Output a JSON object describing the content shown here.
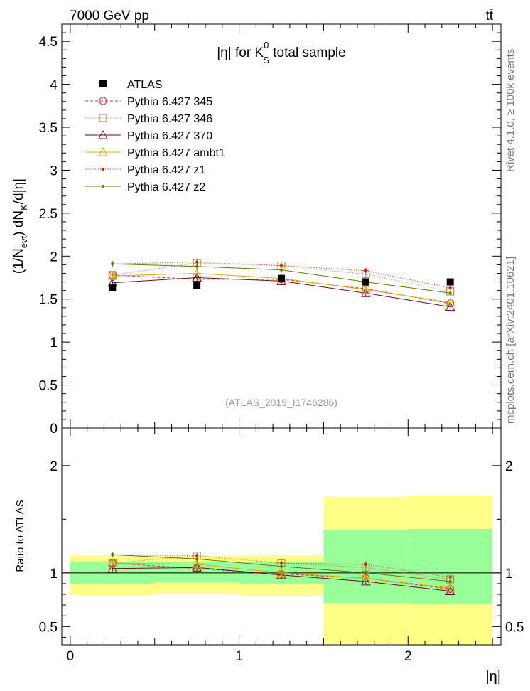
{
  "header": {
    "energy_label": "7000 GeV pp",
    "process_label": "tt̄"
  },
  "side_labels": {
    "rivet": "Rivet 4.1.0, ≥ 100k events",
    "mcplots": "mcplots.cern.ch [arXiv:2401.10621]"
  },
  "chart_data": [
    {
      "type": "line",
      "title": "|η| for K⁰S total sample",
      "title_parts": {
        "pre": "|η| for K",
        "sup": "0",
        "sub": "S",
        "post": " total sample"
      },
      "watermark": "(ATLAS_2019_I1746286)",
      "xlabel": "|η|",
      "ylabel": "(1/Nₑᵥₜ) dNₖ/d|η|",
      "ylabel_parts": {
        "a": "(1/N",
        "a_sub": "evt",
        "b": ") dN",
        "b_sub": "K",
        "c": "/d|η|"
      },
      "xlim": [
        -0.05,
        2.55
      ],
      "ylim": [
        0,
        4.7
      ],
      "yticks": [
        0,
        0.5,
        1,
        1.5,
        2,
        2.5,
        3,
        3.5,
        4,
        4.5
      ],
      "ytick_labels": [
        "0",
        "0.5",
        "1",
        "1.5",
        "2",
        "2.5",
        "3",
        "3.5",
        "4",
        "4.5"
      ],
      "x": [
        0.25,
        0.75,
        1.25,
        1.75,
        2.25
      ],
      "data": {
        "name": "ATLAS",
        "values": [
          1.63,
          1.66,
          1.74,
          1.7,
          1.7
        ],
        "errors": [
          0.02,
          0.02,
          0.02,
          0.03,
          0.03
        ]
      },
      "series": [
        {
          "name": "Pythia 6.427 345",
          "color": "#bb3344",
          "dash": "4,3",
          "marker": "circle",
          "values": [
            1.78,
            1.73,
            1.73,
            1.62,
            1.45
          ]
        },
        {
          "name": "Pythia 6.427 346",
          "color": "#a07a30",
          "dash": "1,2.5",
          "marker": "square",
          "values": [
            1.78,
            1.92,
            1.89,
            1.79,
            1.59
          ]
        },
        {
          "name": "Pythia 6.427 370",
          "color": "#661122",
          "dash": "",
          "marker": "triangle",
          "values": [
            1.69,
            1.75,
            1.71,
            1.57,
            1.41
          ]
        },
        {
          "name": "Pythia 6.427 ambt1",
          "color": "#e0a800",
          "dash": "",
          "marker": "triangle",
          "values": [
            1.77,
            1.8,
            1.74,
            1.61,
            1.46
          ]
        },
        {
          "name": "Pythia 6.427 z1",
          "color": "#dd2200",
          "dash": "1,2.5",
          "marker": "dot",
          "values": [
            1.91,
            1.93,
            1.89,
            1.83,
            1.63
          ]
        },
        {
          "name": "Pythia 6.427 z2",
          "color": "#667700",
          "dash": "",
          "marker": "dot",
          "values": [
            1.91,
            1.88,
            1.84,
            1.7,
            1.57
          ]
        }
      ]
    },
    {
      "type": "line",
      "ylabel": "Ratio to ATLAS",
      "xlabel": "|η|",
      "xlim": [
        -0.05,
        2.55
      ],
      "ylim": [
        0.33,
        2.35
      ],
      "yticks": [
        0.5,
        1,
        2
      ],
      "ytick_labels": [
        "0.5",
        "1",
        "2"
      ],
      "xticks": [
        0,
        1,
        2
      ],
      "xtick_labels": [
        "0",
        "1",
        "2"
      ],
      "bins": [
        [
          0,
          0.5
        ],
        [
          0.5,
          1.0
        ],
        [
          1.0,
          1.5
        ],
        [
          1.5,
          2.0
        ],
        [
          2.0,
          2.5
        ]
      ],
      "band_inner": [
        [
          0.9,
          1.1
        ],
        [
          0.91,
          1.1
        ],
        [
          0.9,
          1.1
        ],
        [
          0.72,
          1.4
        ],
        [
          0.71,
          1.41
        ]
      ],
      "band_outer": [
        [
          0.79,
          1.17
        ],
        [
          0.8,
          1.16
        ],
        [
          0.78,
          1.17
        ],
        [
          0.34,
          1.71
        ],
        [
          0.33,
          1.72
        ]
      ],
      "x": [
        0.25,
        0.75,
        1.25,
        1.75,
        2.25
      ],
      "series": [
        {
          "name": "Pythia 6.427 345",
          "values": [
            1.09,
            1.04,
            0.99,
            0.95,
            0.85
          ]
        },
        {
          "name": "Pythia 6.427 346",
          "values": [
            1.09,
            1.16,
            1.09,
            1.05,
            0.94
          ]
        },
        {
          "name": "Pythia 6.427 370",
          "values": [
            1.04,
            1.05,
            0.98,
            0.92,
            0.83
          ]
        },
        {
          "name": "Pythia 6.427 ambt1",
          "values": [
            1.09,
            1.08,
            1.0,
            0.95,
            0.86
          ]
        },
        {
          "name": "Pythia 6.427 z1",
          "values": [
            1.17,
            1.16,
            1.09,
            1.08,
            0.96
          ]
        },
        {
          "name": "Pythia 6.427 z2",
          "values": [
            1.17,
            1.13,
            1.06,
            1.0,
            0.92
          ]
        }
      ]
    }
  ]
}
